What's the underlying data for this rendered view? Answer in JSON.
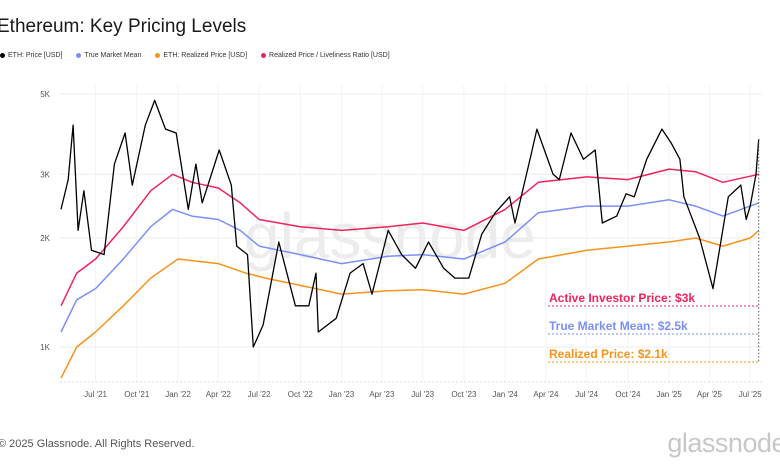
{
  "title": "Ethereum: Key Pricing Levels",
  "footer": "© 2025 Glassnode. All Rights Reserved.",
  "logo": "glassnode",
  "watermark": "glassnode",
  "chart_data": {
    "type": "line",
    "title": "Ethereum: Key Pricing Levels",
    "y_scale": "log",
    "ylim": [
      800,
      5500
    ],
    "y_ticks": [
      {
        "v": 1000,
        "label": "1K"
      },
      {
        "v": 2000,
        "label": "2K"
      },
      {
        "v": 3000,
        "label": "3K"
      },
      {
        "v": 5000,
        "label": "5K"
      }
    ],
    "xlim": [
      "2021-04-15",
      "2025-07-20"
    ],
    "x_ticks": [
      {
        "d": "2021-07-01",
        "label": "Jul '21"
      },
      {
        "d": "2021-10-01",
        "label": "Oct '21"
      },
      {
        "d": "2022-01-01",
        "label": "Jan '22"
      },
      {
        "d": "2022-04-01",
        "label": "Apr '22"
      },
      {
        "d": "2022-07-01",
        "label": "Jul '22"
      },
      {
        "d": "2022-10-01",
        "label": "Oct '22"
      },
      {
        "d": "2023-01-01",
        "label": "Jan '23"
      },
      {
        "d": "2023-04-01",
        "label": "Apr '23"
      },
      {
        "d": "2023-07-01",
        "label": "Jul '23"
      },
      {
        "d": "2023-10-01",
        "label": "Oct '23"
      },
      {
        "d": "2024-01-01",
        "label": "Jan '24"
      },
      {
        "d": "2024-04-01",
        "label": "Apr '24"
      },
      {
        "d": "2024-07-01",
        "label": "Jul '24"
      },
      {
        "d": "2024-10-01",
        "label": "Oct '24"
      },
      {
        "d": "2025-01-01",
        "label": "Jan '25"
      },
      {
        "d": "2025-04-01",
        "label": "Apr '25"
      },
      {
        "d": "2025-07-01",
        "label": "Jul '25"
      }
    ],
    "grid": true,
    "legend_placement": "top-left",
    "series": [
      {
        "name": "ETH: Price [USD]",
        "color": "#000000",
        "points": [
          [
            "2021-04-15",
            2400
          ],
          [
            "2021-05-01",
            2900
          ],
          [
            "2021-05-12",
            4100
          ],
          [
            "2021-05-23",
            2100
          ],
          [
            "2021-06-05",
            2700
          ],
          [
            "2021-06-22",
            1850
          ],
          [
            "2021-07-20",
            1800
          ],
          [
            "2021-08-12",
            3200
          ],
          [
            "2021-09-05",
            3900
          ],
          [
            "2021-09-21",
            2800
          ],
          [
            "2021-10-20",
            4100
          ],
          [
            "2021-11-10",
            4800
          ],
          [
            "2021-12-04",
            4000
          ],
          [
            "2021-12-28",
            3900
          ],
          [
            "2022-01-24",
            2400
          ],
          [
            "2022-02-10",
            3200
          ],
          [
            "2022-02-24",
            2500
          ],
          [
            "2022-04-03",
            3500
          ],
          [
            "2022-04-30",
            2800
          ],
          [
            "2022-05-12",
            1900
          ],
          [
            "2022-06-05",
            1800
          ],
          [
            "2022-06-18",
            1000
          ],
          [
            "2022-07-10",
            1150
          ],
          [
            "2022-08-14",
            1950
          ],
          [
            "2022-09-20",
            1300
          ],
          [
            "2022-10-20",
            1300
          ],
          [
            "2022-11-05",
            1600
          ],
          [
            "2022-11-10",
            1100
          ],
          [
            "2022-12-20",
            1200
          ],
          [
            "2023-01-20",
            1600
          ],
          [
            "2023-02-18",
            1700
          ],
          [
            "2023-03-10",
            1400
          ],
          [
            "2023-04-15",
            2100
          ],
          [
            "2023-05-15",
            1800
          ],
          [
            "2023-06-15",
            1650
          ],
          [
            "2023-07-14",
            1950
          ],
          [
            "2023-08-17",
            1650
          ],
          [
            "2023-09-11",
            1550
          ],
          [
            "2023-10-12",
            1550
          ],
          [
            "2023-11-10",
            2050
          ],
          [
            "2023-12-10",
            2350
          ],
          [
            "2024-01-11",
            2600
          ],
          [
            "2024-01-23",
            2200
          ],
          [
            "2024-02-28",
            3400
          ],
          [
            "2024-03-12",
            4000
          ],
          [
            "2024-04-17",
            3000
          ],
          [
            "2024-05-01",
            2900
          ],
          [
            "2024-05-27",
            3900
          ],
          [
            "2024-06-24",
            3300
          ],
          [
            "2024-07-20",
            3500
          ],
          [
            "2024-08-05",
            2200
          ],
          [
            "2024-09-06",
            2300
          ],
          [
            "2024-09-27",
            2650
          ],
          [
            "2024-10-15",
            2600
          ],
          [
            "2024-11-12",
            3300
          ],
          [
            "2024-12-16",
            4000
          ],
          [
            "2025-01-06",
            3650
          ],
          [
            "2025-01-25",
            3300
          ],
          [
            "2025-02-03",
            2600
          ],
          [
            "2025-03-10",
            2000
          ],
          [
            "2025-04-09",
            1450
          ],
          [
            "2025-05-13",
            2600
          ],
          [
            "2025-06-10",
            2800
          ],
          [
            "2025-06-22",
            2250
          ],
          [
            "2025-07-01",
            2450
          ],
          [
            "2025-07-14",
            3000
          ],
          [
            "2025-07-20",
            3750
          ]
        ]
      },
      {
        "name": "True Market Mean",
        "color": "#7b8ff7",
        "points": [
          [
            "2021-04-15",
            1100
          ],
          [
            "2021-05-20",
            1350
          ],
          [
            "2021-07-01",
            1450
          ],
          [
            "2021-09-01",
            1750
          ],
          [
            "2021-11-01",
            2150
          ],
          [
            "2021-12-20",
            2400
          ],
          [
            "2022-02-01",
            2300
          ],
          [
            "2022-04-01",
            2250
          ],
          [
            "2022-05-20",
            2100
          ],
          [
            "2022-07-01",
            1900
          ],
          [
            "2022-10-01",
            1800
          ],
          [
            "2023-01-01",
            1700
          ],
          [
            "2023-04-15",
            1780
          ],
          [
            "2023-07-01",
            1800
          ],
          [
            "2023-10-01",
            1750
          ],
          [
            "2024-01-01",
            1950
          ],
          [
            "2024-03-15",
            2350
          ],
          [
            "2024-07-01",
            2450
          ],
          [
            "2024-10-01",
            2450
          ],
          [
            "2025-01-01",
            2550
          ],
          [
            "2025-03-01",
            2450
          ],
          [
            "2025-05-01",
            2300
          ],
          [
            "2025-07-20",
            2500
          ]
        ]
      },
      {
        "name": "ETH: Realized Price [USD]",
        "color": "#f7931a",
        "points": [
          [
            "2021-04-15",
            820
          ],
          [
            "2021-05-20",
            1000
          ],
          [
            "2021-07-01",
            1100
          ],
          [
            "2021-09-01",
            1300
          ],
          [
            "2021-11-01",
            1550
          ],
          [
            "2022-01-01",
            1750
          ],
          [
            "2022-04-01",
            1700
          ],
          [
            "2022-06-01",
            1600
          ],
          [
            "2022-07-15",
            1550
          ],
          [
            "2022-10-01",
            1480
          ],
          [
            "2023-01-01",
            1400
          ],
          [
            "2023-04-15",
            1430
          ],
          [
            "2023-07-01",
            1440
          ],
          [
            "2023-10-01",
            1400
          ],
          [
            "2024-01-01",
            1500
          ],
          [
            "2024-03-15",
            1750
          ],
          [
            "2024-07-01",
            1850
          ],
          [
            "2024-10-01",
            1900
          ],
          [
            "2025-01-01",
            1950
          ],
          [
            "2025-03-01",
            2000
          ],
          [
            "2025-05-01",
            1900
          ],
          [
            "2025-07-01",
            2000
          ],
          [
            "2025-07-20",
            2100
          ]
        ]
      },
      {
        "name": "Realized Price / Liveliness Ratio [USD]",
        "color": "#f0245c",
        "points": [
          [
            "2021-04-15",
            1300
          ],
          [
            "2021-05-20",
            1600
          ],
          [
            "2021-07-01",
            1750
          ],
          [
            "2021-09-01",
            2150
          ],
          [
            "2021-11-01",
            2700
          ],
          [
            "2021-12-20",
            3000
          ],
          [
            "2022-02-01",
            2850
          ],
          [
            "2022-04-01",
            2750
          ],
          [
            "2022-05-20",
            2500
          ],
          [
            "2022-07-01",
            2250
          ],
          [
            "2022-10-01",
            2150
          ],
          [
            "2023-01-01",
            2100
          ],
          [
            "2023-04-15",
            2150
          ],
          [
            "2023-07-01",
            2200
          ],
          [
            "2023-10-01",
            2100
          ],
          [
            "2024-01-01",
            2400
          ],
          [
            "2024-03-15",
            2850
          ],
          [
            "2024-07-01",
            2950
          ],
          [
            "2024-10-01",
            2900
          ],
          [
            "2025-01-01",
            3100
          ],
          [
            "2025-03-01",
            3050
          ],
          [
            "2025-05-01",
            2850
          ],
          [
            "2025-07-20",
            3000
          ]
        ]
      }
    ],
    "annotations": [
      {
        "text": "Active Investor Price: $3k",
        "color": "#f0245c",
        "value": 3000
      },
      {
        "text": "True Market Mean: $2.5k",
        "color": "#7b8ff7",
        "value": 2500
      },
      {
        "text": "Realized Price: $2.1k",
        "color": "#f7931a",
        "value": 2100
      }
    ]
  }
}
